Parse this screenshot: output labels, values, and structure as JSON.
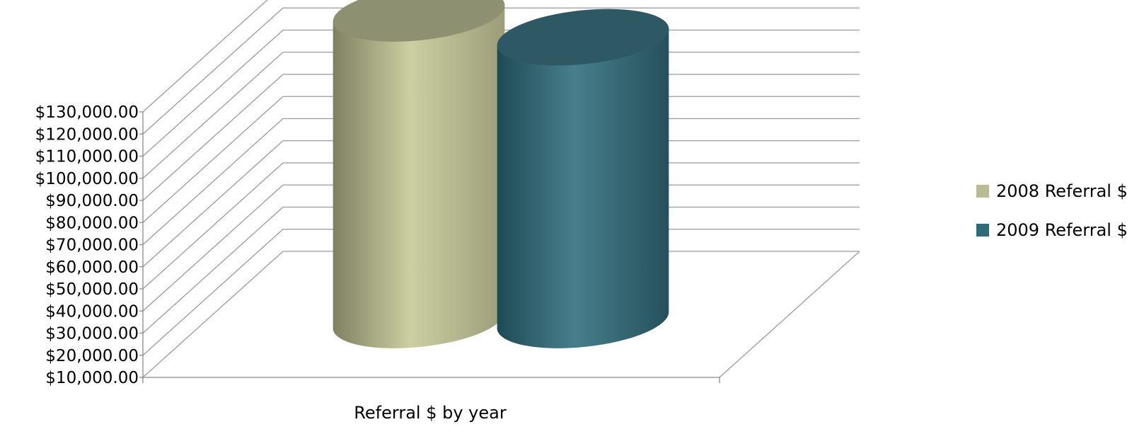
{
  "chart_data": {
    "type": "bar",
    "style": "3d-cylinder",
    "title": "",
    "xlabel": "",
    "ylabel": "",
    "categories": [
      "Referral $ by year"
    ],
    "series": [
      {
        "name": "2008 Referral $",
        "values": [
          126000
        ],
        "color": "#b9bb92"
      },
      {
        "name": "2009 Referral $",
        "values": [
          117000
        ],
        "color": "#2f6a78"
      }
    ],
    "ylim": [
      10000,
      130000
    ],
    "y_ticks": [
      "$10,000.00",
      "$20,000.00",
      "$30,000.00",
      "$40,000.00",
      "$50,000.00",
      "$60,000.00",
      "$70,000.00",
      "$80,000.00",
      "$90,000.00",
      "$100,000.00",
      "$110,000.00",
      "$120,000.00",
      "$130,000.00"
    ],
    "grid": true,
    "legend_position": "right"
  }
}
